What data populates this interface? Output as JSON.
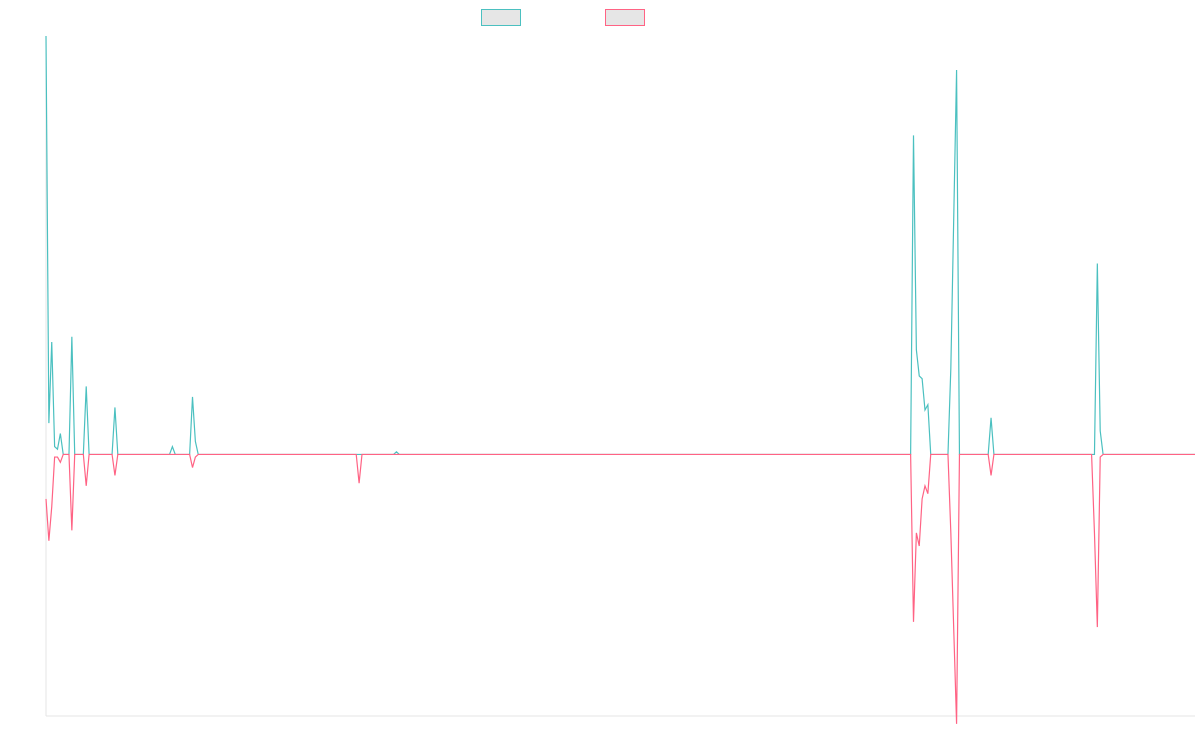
{
  "chart_data": {
    "type": "line",
    "title": "",
    "xlabel": "",
    "ylabel": "",
    "grid": false,
    "legend_position": "top-center",
    "x_range": [
      0,
      400
    ],
    "y_range": [
      -100,
      160
    ],
    "series": [
      {
        "color": "#4bc0c0",
        "fill": "#e6e6e6",
        "points": [
          [
            0,
            160
          ],
          [
            1,
            12
          ],
          [
            2,
            43
          ],
          [
            3,
            3
          ],
          [
            4,
            2
          ],
          [
            5,
            8
          ],
          [
            6,
            0
          ],
          [
            7,
            0
          ],
          [
            8,
            0
          ],
          [
            9,
            45
          ],
          [
            10,
            0
          ],
          [
            11,
            0
          ],
          [
            12,
            0
          ],
          [
            13,
            0
          ],
          [
            14,
            26
          ],
          [
            15,
            0
          ],
          [
            16,
            0
          ],
          [
            17,
            0
          ],
          [
            18,
            0
          ],
          [
            19,
            0
          ],
          [
            20,
            0
          ],
          [
            21,
            0
          ],
          [
            22,
            0
          ],
          [
            23,
            0
          ],
          [
            24,
            18
          ],
          [
            25,
            0
          ],
          [
            26,
            0
          ],
          [
            27,
            0
          ],
          [
            28,
            0
          ],
          [
            29,
            0
          ],
          [
            30,
            0
          ],
          [
            31,
            0
          ],
          [
            32,
            0
          ],
          [
            33,
            0
          ],
          [
            34,
            0
          ],
          [
            35,
            0
          ],
          [
            36,
            0
          ],
          [
            37,
            0
          ],
          [
            38,
            0
          ],
          [
            39,
            0
          ],
          [
            40,
            0
          ],
          [
            41,
            0
          ],
          [
            42,
            0
          ],
          [
            43,
            0
          ],
          [
            44,
            3
          ],
          [
            45,
            0
          ],
          [
            46,
            0
          ],
          [
            47,
            0
          ],
          [
            48,
            0
          ],
          [
            49,
            0
          ],
          [
            50,
            0
          ],
          [
            51,
            22
          ],
          [
            52,
            5
          ],
          [
            53,
            0
          ],
          [
            54,
            0
          ],
          [
            55,
            0
          ],
          [
            56,
            0
          ],
          [
            57,
            0
          ],
          [
            58,
            0
          ],
          [
            59,
            0
          ],
          [
            60,
            0
          ],
          [
            108,
            0
          ],
          [
            109,
            0
          ],
          [
            110,
            0
          ],
          [
            121,
            0
          ],
          [
            122,
            1
          ],
          [
            123,
            0
          ],
          [
            124,
            0
          ],
          [
            300,
            0
          ],
          [
            301,
            0
          ],
          [
            302,
            122
          ],
          [
            303,
            40
          ],
          [
            304,
            30
          ],
          [
            305,
            29
          ],
          [
            306,
            17
          ],
          [
            307,
            19
          ],
          [
            308,
            0
          ],
          [
            309,
            0
          ],
          [
            314,
            0
          ],
          [
            315,
            33
          ],
          [
            317,
            147
          ],
          [
            318,
            0
          ],
          [
            319,
            0
          ],
          [
            320,
            0
          ],
          [
            321,
            0
          ],
          [
            322,
            0
          ],
          [
            323,
            0
          ],
          [
            324,
            0
          ],
          [
            325,
            0
          ],
          [
            326,
            0
          ],
          [
            327,
            0
          ],
          [
            328,
            0
          ],
          [
            329,
            14
          ],
          [
            330,
            0
          ],
          [
            331,
            0
          ],
          [
            364,
            0
          ],
          [
            365,
            0
          ],
          [
            366,
            73
          ],
          [
            367,
            9
          ],
          [
            368,
            0
          ],
          [
            369,
            0
          ],
          [
            400,
            0
          ]
        ]
      },
      {
        "color": "#ff6384",
        "fill": "#e6e6e6",
        "points": [
          [
            0,
            -17
          ],
          [
            1,
            -33
          ],
          [
            2,
            -20
          ],
          [
            3,
            -1
          ],
          [
            4,
            -1
          ],
          [
            5,
            -3
          ],
          [
            6,
            0
          ],
          [
            7,
            0
          ],
          [
            8,
            0
          ],
          [
            9,
            -29
          ],
          [
            10,
            0
          ],
          [
            11,
            0
          ],
          [
            12,
            0
          ],
          [
            13,
            0
          ],
          [
            14,
            -12
          ],
          [
            15,
            0
          ],
          [
            16,
            0
          ],
          [
            17,
            0
          ],
          [
            18,
            0
          ],
          [
            19,
            0
          ],
          [
            20,
            0
          ],
          [
            21,
            0
          ],
          [
            22,
            0
          ],
          [
            23,
            0
          ],
          [
            24,
            -8
          ],
          [
            25,
            0
          ],
          [
            26,
            0
          ],
          [
            27,
            0
          ],
          [
            28,
            0
          ],
          [
            29,
            0
          ],
          [
            30,
            0
          ],
          [
            31,
            0
          ],
          [
            32,
            0
          ],
          [
            33,
            0
          ],
          [
            34,
            0
          ],
          [
            35,
            0
          ],
          [
            36,
            0
          ],
          [
            37,
            0
          ],
          [
            38,
            0
          ],
          [
            39,
            0
          ],
          [
            40,
            0
          ],
          [
            41,
            0
          ],
          [
            42,
            0
          ],
          [
            43,
            0
          ],
          [
            44,
            0
          ],
          [
            45,
            0
          ],
          [
            46,
            0
          ],
          [
            47,
            0
          ],
          [
            48,
            0
          ],
          [
            49,
            0
          ],
          [
            50,
            0
          ],
          [
            51,
            -5
          ],
          [
            52,
            -1
          ],
          [
            53,
            0
          ],
          [
            54,
            0
          ],
          [
            55,
            0
          ],
          [
            56,
            0
          ],
          [
            57,
            0
          ],
          [
            58,
            0
          ],
          [
            59,
            0
          ],
          [
            60,
            0
          ],
          [
            108,
            0
          ],
          [
            109,
            -11
          ],
          [
            110,
            0
          ],
          [
            121,
            0
          ],
          [
            122,
            0
          ],
          [
            123,
            0
          ],
          [
            124,
            0
          ],
          [
            300,
            0
          ],
          [
            301,
            0
          ],
          [
            302,
            -64
          ],
          [
            303,
            -30
          ],
          [
            304,
            -35
          ],
          [
            305,
            -17
          ],
          [
            306,
            -12
          ],
          [
            307,
            -15
          ],
          [
            308,
            0
          ],
          [
            309,
            0
          ],
          [
            314,
            0
          ],
          [
            315,
            -30
          ],
          [
            317,
            -103
          ],
          [
            318,
            0
          ],
          [
            319,
            0
          ],
          [
            320,
            0
          ],
          [
            321,
            0
          ],
          [
            322,
            0
          ],
          [
            323,
            0
          ],
          [
            324,
            0
          ],
          [
            325,
            0
          ],
          [
            326,
            0
          ],
          [
            327,
            0
          ],
          [
            328,
            0
          ],
          [
            329,
            -8
          ],
          [
            330,
            0
          ],
          [
            331,
            0
          ],
          [
            364,
            0
          ],
          [
            365,
            -30
          ],
          [
            366,
            -66
          ],
          [
            367,
            -1
          ],
          [
            368,
            0
          ],
          [
            369,
            0
          ],
          [
            400,
            0
          ]
        ]
      }
    ]
  }
}
